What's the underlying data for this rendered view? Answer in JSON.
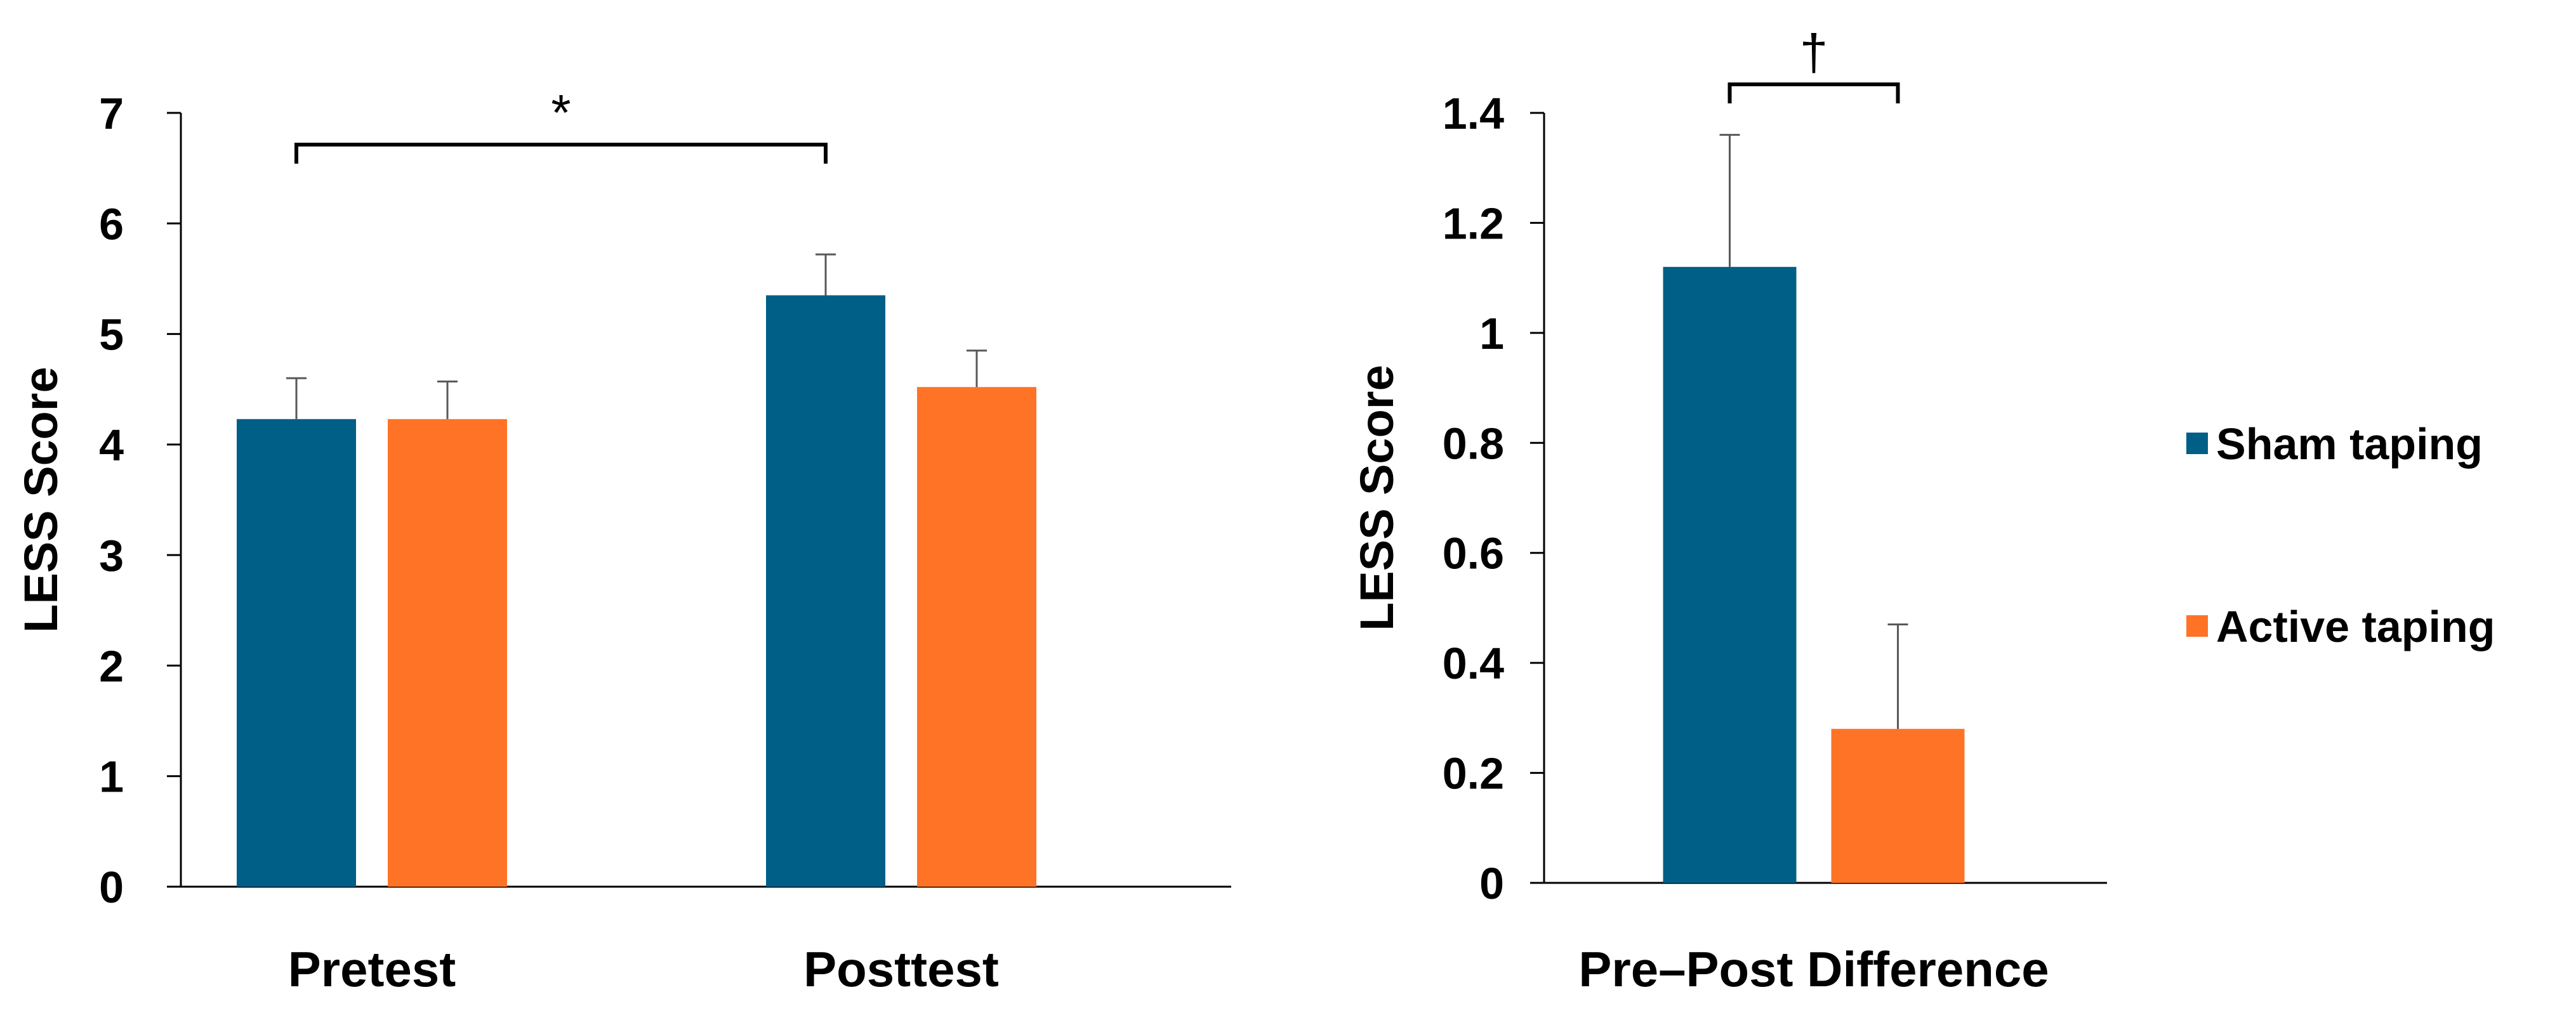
{
  "legend": [
    {
      "name": "Sham taping",
      "color": "#005f87"
    },
    {
      "name": "Active taping",
      "color": "#ff7327"
    }
  ],
  "chart_data": [
    {
      "type": "bar",
      "title": "",
      "xlabel": "",
      "ylabel": "LESS Score",
      "ylim": [
        0,
        7
      ],
      "yticks": [
        "0",
        "1",
        "2",
        "3",
        "4",
        "5",
        "6",
        "7"
      ],
      "categories": [
        "Pretest",
        "Posttest"
      ],
      "series": [
        {
          "name": "Sham taping",
          "color": "#005f87",
          "values": [
            4.23,
            5.35
          ],
          "errors": [
            0.37,
            0.37
          ]
        },
        {
          "name": "Active taping",
          "color": "#ff7327",
          "values": [
            4.23,
            4.52
          ],
          "errors": [
            0.34,
            0.33
          ]
        }
      ],
      "annotation": {
        "text": "*",
        "between": [
          "Pretest",
          "Posttest"
        ]
      }
    },
    {
      "type": "bar",
      "title": "",
      "xlabel": "",
      "ylabel": "LESS Score",
      "ylim": [
        0,
        1.4
      ],
      "yticks": [
        "0",
        "0.2",
        "0.4",
        "0.6",
        "0.8",
        "1",
        "1.2",
        "1.4"
      ],
      "categories": [
        "Pre–Post Difference"
      ],
      "series": [
        {
          "name": "Sham taping",
          "color": "#005f87",
          "values": [
            1.12
          ],
          "errors": [
            0.24
          ]
        },
        {
          "name": "Active taping",
          "color": "#ff7327",
          "values": [
            0.28
          ],
          "errors": [
            0.19
          ]
        }
      ],
      "annotation": {
        "text": "†",
        "between": [
          "Sham taping",
          "Active taping"
        ]
      }
    }
  ]
}
